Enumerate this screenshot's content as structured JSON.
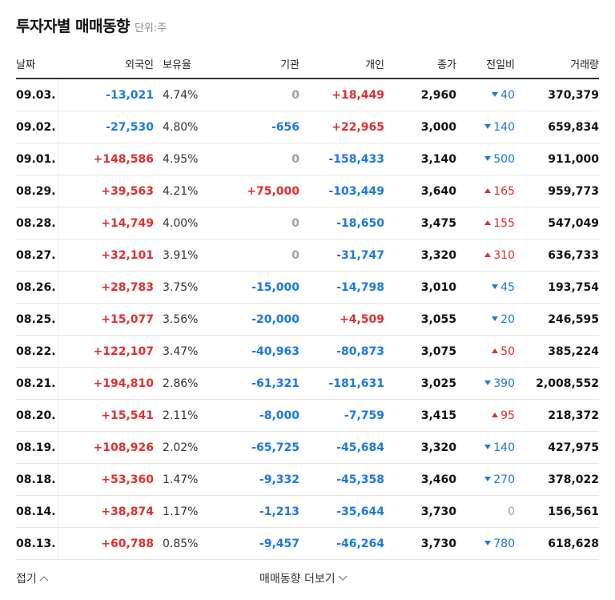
{
  "header": {
    "title": "투자자별 매매동향",
    "unit": "단위:주"
  },
  "columns": {
    "date": "날짜",
    "foreign": "외국인",
    "holding": "보유율",
    "institution": "기관",
    "individual": "개인",
    "close": "종가",
    "change": "전일비",
    "volume": "거래량"
  },
  "rows": [
    {
      "date": "09.03.",
      "foreign": "-13,021",
      "foreign_sign": "neg",
      "holding": "4.74%",
      "institution": "0",
      "inst_sign": "zero",
      "individual": "+18,449",
      "ind_sign": "pos",
      "close": "2,960",
      "change": "40",
      "change_dir": "down",
      "volume": "370,379"
    },
    {
      "date": "09.02.",
      "foreign": "-27,530",
      "foreign_sign": "neg",
      "holding": "4.80%",
      "institution": "-656",
      "inst_sign": "neg",
      "individual": "+22,965",
      "ind_sign": "pos",
      "close": "3,000",
      "change": "140",
      "change_dir": "down",
      "volume": "659,834"
    },
    {
      "date": "09.01.",
      "foreign": "+148,586",
      "foreign_sign": "pos",
      "holding": "4.95%",
      "institution": "0",
      "inst_sign": "zero",
      "individual": "-158,433",
      "ind_sign": "neg",
      "close": "3,140",
      "change": "500",
      "change_dir": "down",
      "volume": "911,000"
    },
    {
      "date": "08.29.",
      "foreign": "+39,563",
      "foreign_sign": "pos",
      "holding": "4.21%",
      "institution": "+75,000",
      "inst_sign": "pos",
      "individual": "-103,449",
      "ind_sign": "neg",
      "close": "3,640",
      "change": "165",
      "change_dir": "up",
      "volume": "959,773"
    },
    {
      "date": "08.28.",
      "foreign": "+14,749",
      "foreign_sign": "pos",
      "holding": "4.00%",
      "institution": "0",
      "inst_sign": "zero",
      "individual": "-18,650",
      "ind_sign": "neg",
      "close": "3,475",
      "change": "155",
      "change_dir": "up",
      "volume": "547,049"
    },
    {
      "date": "08.27.",
      "foreign": "+32,101",
      "foreign_sign": "pos",
      "holding": "3.91%",
      "institution": "0",
      "inst_sign": "zero",
      "individual": "-31,747",
      "ind_sign": "neg",
      "close": "3,320",
      "change": "310",
      "change_dir": "up",
      "volume": "636,733"
    },
    {
      "date": "08.26.",
      "foreign": "+28,783",
      "foreign_sign": "pos",
      "holding": "3.75%",
      "institution": "-15,000",
      "inst_sign": "neg",
      "individual": "-14,798",
      "ind_sign": "neg",
      "close": "3,010",
      "change": "45",
      "change_dir": "down",
      "volume": "193,754"
    },
    {
      "date": "08.25.",
      "foreign": "+15,077",
      "foreign_sign": "pos",
      "holding": "3.56%",
      "institution": "-20,000",
      "inst_sign": "neg",
      "individual": "+4,509",
      "ind_sign": "pos",
      "close": "3,055",
      "change": "20",
      "change_dir": "down",
      "volume": "246,595"
    },
    {
      "date": "08.22.",
      "foreign": "+122,107",
      "foreign_sign": "pos",
      "holding": "3.47%",
      "institution": "-40,963",
      "inst_sign": "neg",
      "individual": "-80,873",
      "ind_sign": "neg",
      "close": "3,075",
      "change": "50",
      "change_dir": "up",
      "volume": "385,224"
    },
    {
      "date": "08.21.",
      "foreign": "+194,810",
      "foreign_sign": "pos",
      "holding": "2.86%",
      "institution": "-61,321",
      "inst_sign": "neg",
      "individual": "-181,631",
      "ind_sign": "neg",
      "close": "3,025",
      "change": "390",
      "change_dir": "down",
      "volume": "2,008,552"
    },
    {
      "date": "08.20.",
      "foreign": "+15,541",
      "foreign_sign": "pos",
      "holding": "2.11%",
      "institution": "-8,000",
      "inst_sign": "neg",
      "individual": "-7,759",
      "ind_sign": "neg",
      "close": "3,415",
      "change": "95",
      "change_dir": "up",
      "volume": "218,372"
    },
    {
      "date": "08.19.",
      "foreign": "+108,926",
      "foreign_sign": "pos",
      "holding": "2.02%",
      "institution": "-65,725",
      "inst_sign": "neg",
      "individual": "-45,684",
      "ind_sign": "neg",
      "close": "3,320",
      "change": "140",
      "change_dir": "down",
      "volume": "427,975"
    },
    {
      "date": "08.18.",
      "foreign": "+53,360",
      "foreign_sign": "pos",
      "holding": "1.47%",
      "institution": "-9,332",
      "inst_sign": "neg",
      "individual": "-45,358",
      "ind_sign": "neg",
      "close": "3,460",
      "change": "270",
      "change_dir": "down",
      "volume": "378,022"
    },
    {
      "date": "08.14.",
      "foreign": "+38,874",
      "foreign_sign": "pos",
      "holding": "1.17%",
      "institution": "-1,213",
      "inst_sign": "neg",
      "individual": "-35,644",
      "ind_sign": "neg",
      "close": "3,730",
      "change": "0",
      "change_dir": "none",
      "volume": "156,561"
    },
    {
      "date": "08.13.",
      "foreign": "+60,788",
      "foreign_sign": "pos",
      "holding": "0.85%",
      "institution": "-9,457",
      "inst_sign": "neg",
      "individual": "-46,264",
      "ind_sign": "neg",
      "close": "3,730",
      "change": "780",
      "change_dir": "down",
      "volume": "618,628"
    }
  ],
  "footer": {
    "collapse_label": "접기",
    "more_label": "매매동향 더보기"
  },
  "colors": {
    "up": "#e22d2d",
    "down": "#1c78e0",
    "zero": "#a0a0a0"
  },
  "icons": {
    "collapse": "chevron-up-icon",
    "more": "chevron-down-icon",
    "up": "triangle-up-icon",
    "down": "triangle-down-icon"
  }
}
